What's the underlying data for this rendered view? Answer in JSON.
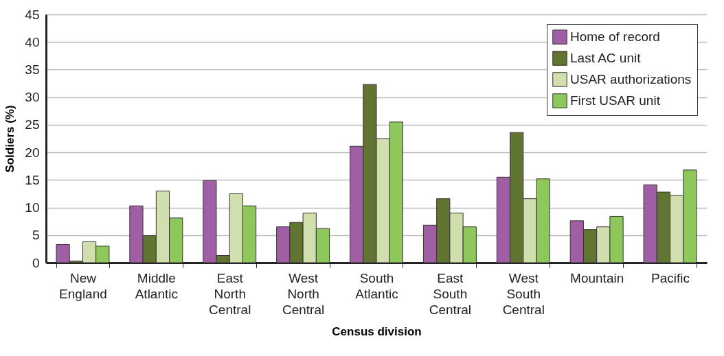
{
  "chart_data": {
    "type": "bar",
    "xlabel": "Census division",
    "ylabel": "Soldiers (%)",
    "categories": [
      "New England",
      "Middle Atlantic",
      "East North Central",
      "West North Central",
      "South Atlantic",
      "East South Central",
      "West South Central",
      "Mountain",
      "Pacific"
    ],
    "series": [
      {
        "name": "Home of record",
        "color": "#a05fa5",
        "values": [
          3.3,
          10.3,
          14.9,
          6.5,
          21.1,
          6.8,
          15.5,
          7.6,
          14.1
        ]
      },
      {
        "name": "Last AC unit",
        "color": "#627432",
        "values": [
          0.3,
          4.9,
          1.3,
          7.3,
          32.3,
          11.6,
          23.6,
          6.0,
          12.8
        ]
      },
      {
        "name": "USAR authorizations",
        "color": "#d0dfad",
        "values": [
          3.8,
          13.0,
          12.5,
          9.0,
          22.5,
          9.0,
          11.6,
          6.5,
          12.2
        ]
      },
      {
        "name": "First USAR unit",
        "color": "#8fc85a",
        "values": [
          3.0,
          8.1,
          10.3,
          6.2,
          25.5,
          6.5,
          15.2,
          8.4,
          16.8
        ]
      }
    ],
    "ylim": [
      0,
      45
    ],
    "yticks": [
      0,
      5,
      10,
      15,
      20,
      25,
      30,
      35,
      40,
      45
    ],
    "grid": "y",
    "legend": "top right"
  }
}
